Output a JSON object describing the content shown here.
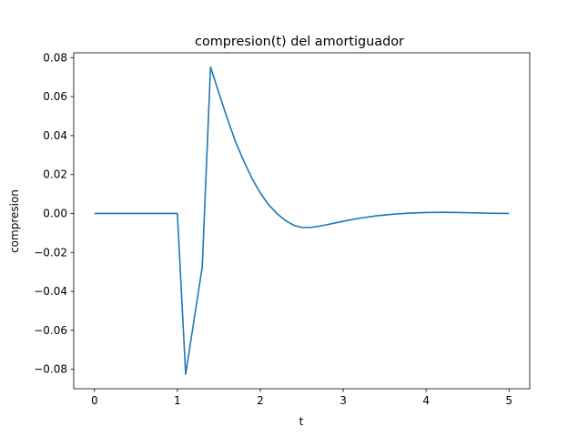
{
  "chart_data": {
    "type": "line",
    "title": "compresion(t) del amortiguador",
    "xlabel": "t",
    "ylabel": "compresion",
    "xlim": [
      -0.25,
      5.25
    ],
    "ylim": [
      -0.09,
      0.0825
    ],
    "xticks": [
      0,
      1,
      2,
      3,
      4,
      5
    ],
    "xtick_labels": [
      "0",
      "1",
      "2",
      "3",
      "4",
      "5"
    ],
    "yticks": [
      -0.08,
      -0.06,
      -0.04,
      -0.02,
      0.0,
      0.02,
      0.04,
      0.06,
      0.08
    ],
    "ytick_labels": [
      "−0.08",
      "−0.06",
      "−0.04",
      "−0.02",
      "0.00",
      "0.02",
      "0.04",
      "0.06",
      "0.08"
    ],
    "grid": false,
    "line_color": "#1f77b4",
    "series": [
      {
        "x": [
          0,
          0.5,
          1.0,
          1.1,
          1.2,
          1.3,
          1.4,
          1.5,
          1.6,
          1.7,
          1.8,
          1.9,
          2.0,
          2.1,
          2.2,
          2.3,
          2.4,
          2.5,
          2.6,
          2.7,
          2.8,
          2.9,
          3.0,
          3.2,
          3.4,
          3.6,
          3.8,
          4.0,
          4.2,
          4.4,
          4.6,
          4.8,
          5.0
        ],
        "y": [
          0.0,
          0.0,
          0.0,
          -0.0825,
          -0.055,
          -0.0275,
          0.0752,
          0.062,
          0.049,
          0.037,
          0.027,
          0.018,
          0.0105,
          0.0045,
          0.0,
          -0.0035,
          -0.006,
          -0.0072,
          -0.0072,
          -0.0066,
          -0.0058,
          -0.0049,
          -0.004,
          -0.0024,
          -0.0012,
          -0.0004,
          0.0002,
          0.0005,
          0.0006,
          0.0005,
          0.0003,
          0.0001,
          0.0
        ]
      }
    ]
  }
}
